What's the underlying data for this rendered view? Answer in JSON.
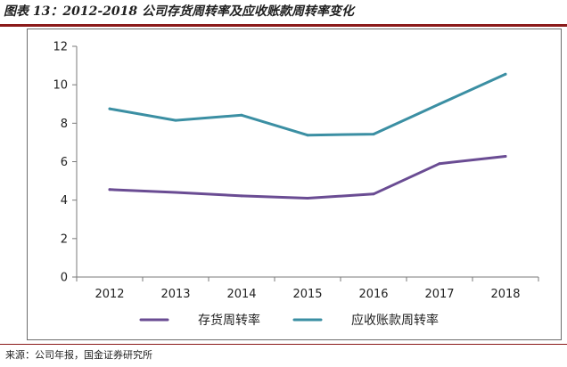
{
  "title": "图表 13：2012-2018 公司存货周转率及应收账款周转率变化",
  "source": "来源：公司年报，国金证券研究所",
  "chart_data": {
    "type": "line",
    "categories": [
      "2012",
      "2013",
      "2014",
      "2015",
      "2016",
      "2017",
      "2018"
    ],
    "ylim": [
      0,
      12
    ],
    "yticks": [
      "0",
      "2",
      "4",
      "6",
      "8",
      "10",
      "12"
    ],
    "grid": false,
    "legend_position": "bottom",
    "series": [
      {
        "name": "存货周转率",
        "color": "#6a4c93",
        "values": [
          4.55,
          4.4,
          4.22,
          4.1,
          4.32,
          5.9,
          6.28
        ]
      },
      {
        "name": "应收账款周转率",
        "color": "#3b8fa3",
        "values": [
          8.75,
          8.15,
          8.42,
          7.38,
          7.43,
          9.0,
          10.55
        ]
      }
    ]
  }
}
